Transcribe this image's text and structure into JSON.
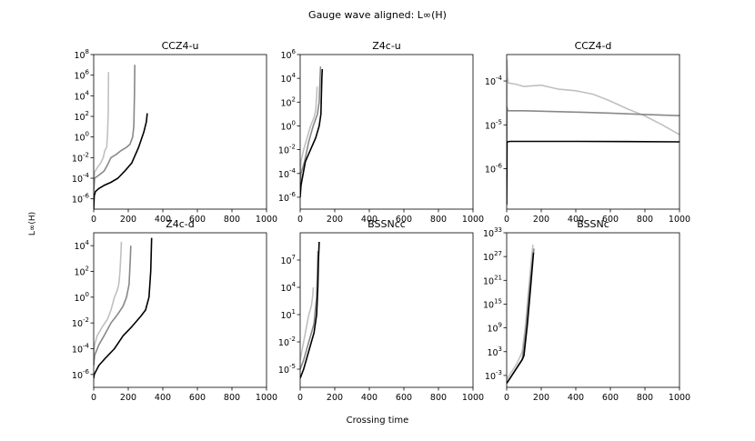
{
  "figure": {
    "suptitle": "Gauge wave aligned: L∞(H)",
    "xlabel": "Crossing time",
    "ylabel": "L∞(H)"
  },
  "colors": {
    "light": "#c0c0c0",
    "mid": "#888888",
    "dark": "#000000"
  },
  "chart_data": [
    {
      "type": "line",
      "title": "CCZ4-u",
      "yscale": "log",
      "xlim": [
        0,
        1000
      ],
      "ylim": [
        1e-07,
        100000000.0
      ],
      "xticks": [
        "0",
        "200",
        "400",
        "600",
        "800",
        "1000"
      ],
      "yticks": [
        {
          "exp": -6,
          "label": "10",
          "sup": "-6"
        },
        {
          "exp": -4,
          "label": "10",
          "sup": "-4"
        },
        {
          "exp": -2,
          "label": "10",
          "sup": "-2"
        },
        {
          "exp": 0,
          "label": "10",
          "sup": "0"
        },
        {
          "exp": 2,
          "label": "10",
          "sup": "2"
        },
        {
          "exp": 4,
          "label": "10",
          "sup": "4"
        },
        {
          "exp": 6,
          "label": "10",
          "sup": "6"
        },
        {
          "exp": 8,
          "label": "10",
          "sup": "8"
        }
      ],
      "series": [
        {
          "color": "light",
          "x": [
            0,
            5,
            20,
            40,
            55,
            65,
            75,
            80,
            84,
            86
          ],
          "y": [
            2e-05,
            0.0004,
            0.001,
            0.003,
            0.01,
            0.05,
            0.1,
            2,
            200.0,
            2000000.0
          ]
        },
        {
          "color": "mid",
          "x": [
            0,
            5,
            30,
            60,
            80,
            100,
            130,
            160,
            190,
            210,
            225,
            232,
            236,
            238
          ],
          "y": [
            5e-06,
            0.0001,
            0.0002,
            0.0005,
            0.002,
            0.01,
            0.02,
            0.05,
            0.1,
            0.2,
            1,
            10,
            10000.0,
            10000000.0
          ]
        },
        {
          "color": "dark",
          "x": [
            0,
            3,
            10,
            30,
            60,
            100,
            140,
            180,
            220,
            260,
            290,
            305,
            310
          ],
          "y": [
            1e-07,
            2e-06,
            5e-06,
            1e-05,
            2e-05,
            4e-05,
            0.0001,
            0.0005,
            0.003,
            0.1,
            3,
            30,
            200.0
          ]
        }
      ]
    },
    {
      "type": "line",
      "title": "Z4c-u",
      "yscale": "log",
      "xlim": [
        0,
        1000
      ],
      "ylim": [
        1e-07,
        1000000.0
      ],
      "xticks": [
        "0",
        "200",
        "400",
        "600",
        "800",
        "1000"
      ],
      "yticks": [
        {
          "exp": -6,
          "label": "10",
          "sup": "-6"
        },
        {
          "exp": -4,
          "label": "10",
          "sup": "-4"
        },
        {
          "exp": -2,
          "label": "10",
          "sup": "-2"
        },
        {
          "exp": 0,
          "label": "10",
          "sup": "0"
        },
        {
          "exp": 2,
          "label": "10",
          "sup": "2"
        },
        {
          "exp": 4,
          "label": "10",
          "sup": "4"
        },
        {
          "exp": 6,
          "label": "10",
          "sup": "6"
        }
      ],
      "series": [
        {
          "color": "light",
          "x": [
            0,
            5,
            20,
            40,
            60,
            80,
            90,
            95,
            98
          ],
          "y": [
            0.0001,
            0.001,
            0.01,
            0.1,
            1,
            5,
            20,
            300,
            2000.0
          ]
        },
        {
          "color": "mid",
          "x": [
            0,
            5,
            25,
            50,
            75,
            100,
            110,
            115,
            118
          ],
          "y": [
            1e-05,
            0.0001,
            0.001,
            0.05,
            1,
            10,
            100,
            10000.0,
            100000.0
          ]
        },
        {
          "color": "dark",
          "x": [
            0,
            5,
            30,
            60,
            90,
            110,
            120,
            125,
            128
          ],
          "y": [
            1e-06,
            1e-05,
            0.001,
            0.01,
            0.1,
            1,
            10,
            10000.0,
            60000.0
          ]
        }
      ]
    },
    {
      "type": "line",
      "title": "CCZ4-d",
      "yscale": "log",
      "xlim": [
        0,
        1000
      ],
      "ylim": [
        1.2e-07,
        0.0004
      ],
      "xticks": [
        "0",
        "200",
        "400",
        "600",
        "800",
        "1000"
      ],
      "yticks": [
        {
          "exp": -6,
          "label": "10",
          "sup": "-6"
        },
        {
          "exp": -5,
          "label": "10",
          "sup": "-5"
        },
        {
          "exp": -4,
          "label": "10",
          "sup": "-4"
        }
      ],
      "series": [
        {
          "color": "light",
          "x": [
            0,
            2,
            5,
            10,
            50,
            100,
            200,
            300,
            400,
            500,
            600,
            700,
            800,
            900,
            1000
          ],
          "y": [
            1e-06,
            0.0003,
            0.00012,
            9e-05,
            8.5e-05,
            7.5e-05,
            8e-05,
            6.5e-05,
            6e-05,
            5e-05,
            3.5e-05,
            2.3e-05,
            1.6e-05,
            1e-05,
            6e-06
          ]
        },
        {
          "color": "mid",
          "x": [
            0,
            2,
            5,
            20,
            100,
            200,
            400,
            600,
            800,
            1000
          ],
          "y": [
            5e-07,
            2.5e-05,
            2.1e-05,
            2.1e-05,
            2.1e-05,
            2.05e-05,
            1.95e-05,
            1.85e-05,
            1.72e-05,
            1.62e-05
          ]
        },
        {
          "color": "dark",
          "x": [
            0,
            2,
            5,
            20,
            100,
            400,
            700,
            1000
          ],
          "y": [
            1.5e-07,
            4e-06,
            4.1e-06,
            4.2e-06,
            4.2e-06,
            4.2e-06,
            4.15e-06,
            4.1e-06
          ]
        }
      ]
    },
    {
      "type": "line",
      "title": "Z4c-d",
      "yscale": "log",
      "xlim": [
        0,
        1000
      ],
      "ylim": [
        1e-07,
        100000.0
      ],
      "xticks": [
        "0",
        "200",
        "400",
        "600",
        "800",
        "1000"
      ],
      "yticks": [
        {
          "exp": -6,
          "label": "10",
          "sup": "-6"
        },
        {
          "exp": -4,
          "label": "10",
          "sup": "-4"
        },
        {
          "exp": -2,
          "label": "10",
          "sup": "-2"
        },
        {
          "exp": 0,
          "label": "10",
          "sup": "0"
        },
        {
          "exp": 2,
          "label": "10",
          "sup": "2"
        },
        {
          "exp": 4,
          "label": "10",
          "sup": "4"
        }
      ],
      "series": [
        {
          "color": "light",
          "x": [
            0,
            5,
            20,
            50,
            80,
            100,
            120,
            135,
            145,
            152,
            158,
            160
          ],
          "y": [
            3e-05,
            0.0002,
            0.001,
            0.005,
            0.02,
            0.1,
            1,
            3,
            10,
            100,
            3000.0,
            20000.0
          ]
        },
        {
          "color": "mid",
          "x": [
            0,
            5,
            30,
            60,
            100,
            140,
            170,
            190,
            205,
            212,
            215
          ],
          "y": [
            5e-06,
            3e-05,
            0.0002,
            0.001,
            0.01,
            0.05,
            0.2,
            1,
            10,
            1000.0,
            10000.0
          ]
        },
        {
          "color": "dark",
          "x": [
            0,
            3,
            30,
            70,
            120,
            170,
            220,
            270,
            300,
            320,
            330,
            335
          ],
          "y": [
            5e-07,
            1e-06,
            5e-06,
            2e-05,
            0.0001,
            0.001,
            0.005,
            0.03,
            0.1,
            1,
            100,
            40000.0
          ]
        }
      ]
    },
    {
      "type": "line",
      "title": "BSSNcc",
      "yscale": "log",
      "xlim": [
        0,
        1000
      ],
      "ylim": [
        1e-07,
        10000000000.0
      ],
      "xticks": [
        "0",
        "200",
        "400",
        "600",
        "800",
        "1000"
      ],
      "yticks": [
        {
          "exp": -5,
          "label": "10",
          "sup": "-5"
        },
        {
          "exp": -2,
          "label": "10",
          "sup": "-2"
        },
        {
          "exp": 1,
          "label": "10",
          "sup": "1"
        },
        {
          "exp": 4,
          "label": "10",
          "sup": "4"
        },
        {
          "exp": 7,
          "label": "10",
          "sup": "7"
        }
      ],
      "series": [
        {
          "color": "light",
          "x": [
            0,
            10,
            30,
            50,
            65,
            72,
            76
          ],
          "y": [
            0.0001,
            0.001,
            0.1,
            10.0,
            100,
            1000.0,
            10000.0
          ]
        },
        {
          "color": "mid",
          "x": [
            0,
            20,
            50,
            80,
            95,
            100,
            103
          ],
          "y": [
            1e-05,
            0.0001,
            0.01,
            1,
            1000.0,
            1000000.0,
            100000000.0
          ]
        },
        {
          "color": "dark",
          "x": [
            0,
            20,
            50,
            80,
            95,
            102,
            106,
            110
          ],
          "y": [
            1e-06,
            1e-05,
            0.001,
            0.1,
            10,
            10000.0,
            10000000.0,
            1000000000.0
          ]
        }
      ]
    },
    {
      "type": "line",
      "title": "BSSNc",
      "yscale": "log",
      "xlim": [
        0,
        1000
      ],
      "ylim": [
        1e-06,
        1e+33
      ],
      "xticks": [
        "0",
        "200",
        "400",
        "600",
        "800",
        "1000"
      ],
      "yticks": [
        {
          "exp": -3,
          "label": "10",
          "sup": "-3"
        },
        {
          "exp": 3,
          "label": "10",
          "sup": "3"
        },
        {
          "exp": 9,
          "label": "10",
          "sup": "9"
        },
        {
          "exp": 15,
          "label": "10",
          "sup": "15"
        },
        {
          "exp": 21,
          "label": "10",
          "sup": "21"
        },
        {
          "exp": 27,
          "label": "10",
          "sup": "27"
        },
        {
          "exp": 33,
          "label": "10",
          "sup": "33"
        }
      ],
      "series": [
        {
          "color": "light",
          "x": [
            0,
            30,
            60,
            90,
            110,
            130,
            145,
            152
          ],
          "y": [
            0.0001,
            0.01,
            1,
            1000.0,
            10000000000.0,
            1e+20,
            1e+27,
            1e+30
          ]
        },
        {
          "color": "mid",
          "x": [
            0,
            30,
            60,
            90,
            110,
            130,
            150,
            158
          ],
          "y": [
            1e-05,
            0.001,
            0.1,
            10,
            100000000.0,
            1e+18,
            1e+26,
            1e+29
          ]
        },
        {
          "color": "dark",
          "x": [
            0,
            30,
            60,
            90,
            100,
            120,
            140,
            155
          ],
          "y": [
            1e-05,
            0.001,
            0.1,
            10,
            100.0,
            10000000000.0,
            1e+20,
            1e+28
          ]
        }
      ]
    }
  ]
}
